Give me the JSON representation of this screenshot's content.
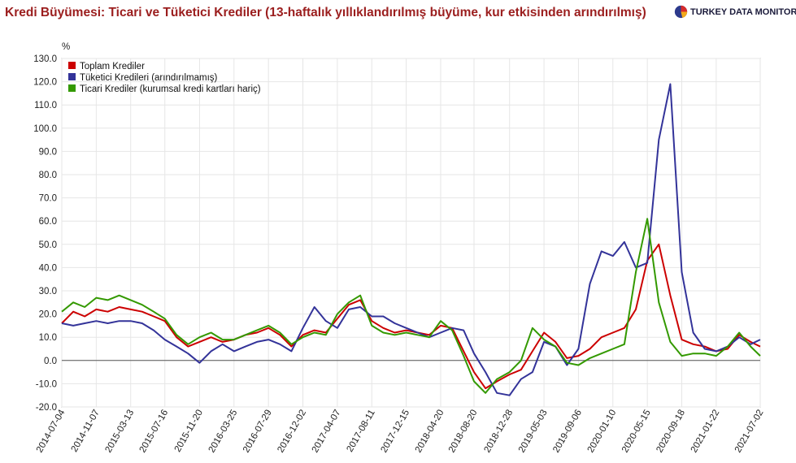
{
  "header": {
    "title": "Kredi Büyümesi: Ticari ve Tüketici Krediler (13-haftalık yıllıklandırılmış büyüme, kur etkisinden arındırılmış)",
    "logo_text": "TURKEY DATA MONITOR",
    "logo_icon": "pie-logo-icon"
  },
  "chart_data": {
    "type": "line",
    "title": "Kredi Büyümesi: Ticari ve Tüketici Krediler (13-haftalık yıllıklandırılmış büyüme, kur etkisinden arındırılmış)",
    "ylabel": "%",
    "ylim": [
      -20,
      130
    ],
    "yticks": [
      "130.0",
      "120.0",
      "110.0",
      "100.0",
      "90.0",
      "80.0",
      "70.0",
      "60.0",
      "50.0",
      "40.0",
      "30.0",
      "20.0",
      "10.0",
      "0.0",
      "-10.0",
      "-20.0"
    ],
    "xlim": [
      "2014-07-04",
      "2021-07-02"
    ],
    "xticks": [
      "2014-07-04",
      "2014-11-07",
      "2015-03-13",
      "2015-07-16",
      "2015-11-20",
      "2016-03-25",
      "2016-07-29",
      "2016-12-02",
      "2017-04-07",
      "2017-08-11",
      "2017-12-15",
      "2018-04-20",
      "2018-08-20",
      "2018-12-28",
      "2019-05-03",
      "2019-09-06",
      "2020-01-10",
      "2020-05-15",
      "2020-09-18",
      "2021-01-22",
      "2021-07-02"
    ],
    "grid": true,
    "zero_line": true,
    "legend_position": "top-left",
    "series": [
      {
        "name": "Toplam Krediler",
        "color": "#cc0000",
        "points": [
          [
            "2014-07-04",
            16
          ],
          [
            "2014-08-15",
            21
          ],
          [
            "2014-09-26",
            19
          ],
          [
            "2014-11-07",
            22
          ],
          [
            "2014-12-19",
            21
          ],
          [
            "2015-01-30",
            23
          ],
          [
            "2015-03-13",
            22
          ],
          [
            "2015-04-24",
            21
          ],
          [
            "2015-06-05",
            19
          ],
          [
            "2015-07-16",
            17
          ],
          [
            "2015-08-28",
            10
          ],
          [
            "2015-10-09",
            6
          ],
          [
            "2015-11-20",
            8
          ],
          [
            "2016-01-01",
            10
          ],
          [
            "2016-02-12",
            8
          ],
          [
            "2016-03-25",
            9
          ],
          [
            "2016-05-06",
            11
          ],
          [
            "2016-06-17",
            12
          ],
          [
            "2016-07-29",
            14
          ],
          [
            "2016-09-09",
            11
          ],
          [
            "2016-10-21",
            6
          ],
          [
            "2016-12-02",
            11
          ],
          [
            "2017-01-13",
            13
          ],
          [
            "2017-02-24",
            12
          ],
          [
            "2017-04-07",
            18
          ],
          [
            "2017-05-19",
            24
          ],
          [
            "2017-06-30",
            26
          ],
          [
            "2017-08-11",
            17
          ],
          [
            "2017-09-22",
            14
          ],
          [
            "2017-11-03",
            12
          ],
          [
            "2017-12-15",
            13
          ],
          [
            "2018-01-26",
            12
          ],
          [
            "2018-03-09",
            11
          ],
          [
            "2018-04-20",
            15
          ],
          [
            "2018-06-01",
            14
          ],
          [
            "2018-07-13",
            4
          ],
          [
            "2018-08-20",
            -5
          ],
          [
            "2018-10-01",
            -12
          ],
          [
            "2018-11-12",
            -9
          ],
          [
            "2018-12-28",
            -6
          ],
          [
            "2019-02-08",
            -4
          ],
          [
            "2019-03-22",
            4
          ],
          [
            "2019-05-03",
            12
          ],
          [
            "2019-06-14",
            8
          ],
          [
            "2019-07-26",
            1
          ],
          [
            "2019-09-06",
            2
          ],
          [
            "2019-10-18",
            5
          ],
          [
            "2019-11-29",
            10
          ],
          [
            "2020-01-10",
            12
          ],
          [
            "2020-02-21",
            14
          ],
          [
            "2020-04-03",
            22
          ],
          [
            "2020-05-15",
            43
          ],
          [
            "2020-06-26",
            50
          ],
          [
            "2020-08-07",
            28
          ],
          [
            "2020-09-18",
            9
          ],
          [
            "2020-10-30",
            7
          ],
          [
            "2020-12-11",
            6
          ],
          [
            "2021-01-22",
            4
          ],
          [
            "2021-03-05",
            5
          ],
          [
            "2021-04-16",
            11
          ],
          [
            "2021-05-28",
            8
          ],
          [
            "2021-07-02",
            6
          ]
        ]
      },
      {
        "name": "Tüketici Kredileri (arındırılmamış)",
        "color": "#333399",
        "points": [
          [
            "2014-07-04",
            16
          ],
          [
            "2014-08-15",
            15
          ],
          [
            "2014-09-26",
            16
          ],
          [
            "2014-11-07",
            17
          ],
          [
            "2014-12-19",
            16
          ],
          [
            "2015-01-30",
            17
          ],
          [
            "2015-03-13",
            17
          ],
          [
            "2015-04-24",
            16
          ],
          [
            "2015-06-05",
            13
          ],
          [
            "2015-07-16",
            9
          ],
          [
            "2015-08-28",
            6
          ],
          [
            "2015-10-09",
            3
          ],
          [
            "2015-11-20",
            -1
          ],
          [
            "2016-01-01",
            4
          ],
          [
            "2016-02-12",
            7
          ],
          [
            "2016-03-25",
            4
          ],
          [
            "2016-05-06",
            6
          ],
          [
            "2016-06-17",
            8
          ],
          [
            "2016-07-29",
            9
          ],
          [
            "2016-09-09",
            7
          ],
          [
            "2016-10-21",
            4
          ],
          [
            "2016-12-02",
            14
          ],
          [
            "2017-01-13",
            23
          ],
          [
            "2017-02-24",
            17
          ],
          [
            "2017-04-07",
            14
          ],
          [
            "2017-05-19",
            22
          ],
          [
            "2017-06-30",
            23
          ],
          [
            "2017-08-11",
            19
          ],
          [
            "2017-09-22",
            19
          ],
          [
            "2017-11-03",
            16
          ],
          [
            "2017-12-15",
            14
          ],
          [
            "2018-01-26",
            12
          ],
          [
            "2018-03-09",
            10
          ],
          [
            "2018-04-20",
            12
          ],
          [
            "2018-06-01",
            14
          ],
          [
            "2018-07-13",
            13
          ],
          [
            "2018-08-20",
            3
          ],
          [
            "2018-10-01",
            -5
          ],
          [
            "2018-11-12",
            -14
          ],
          [
            "2018-12-28",
            -15
          ],
          [
            "2019-02-08",
            -8
          ],
          [
            "2019-03-22",
            -5
          ],
          [
            "2019-05-03",
            8
          ],
          [
            "2019-06-14",
            6
          ],
          [
            "2019-07-26",
            -2
          ],
          [
            "2019-09-06",
            5
          ],
          [
            "2019-10-18",
            33
          ],
          [
            "2019-11-29",
            47
          ],
          [
            "2020-01-10",
            45
          ],
          [
            "2020-02-21",
            51
          ],
          [
            "2020-04-03",
            40
          ],
          [
            "2020-05-15",
            42
          ],
          [
            "2020-06-26",
            95
          ],
          [
            "2020-08-07",
            119
          ],
          [
            "2020-09-18",
            38
          ],
          [
            "2020-10-30",
            12
          ],
          [
            "2020-12-11",
            5
          ],
          [
            "2021-01-22",
            4
          ],
          [
            "2021-03-05",
            6
          ],
          [
            "2021-04-16",
            10
          ],
          [
            "2021-05-28",
            7
          ],
          [
            "2021-07-02",
            9
          ]
        ]
      },
      {
        "name": "Ticari Krediler (kurumsal kredi kartları hariç)",
        "color": "#339900",
        "points": [
          [
            "2014-07-04",
            21
          ],
          [
            "2014-08-15",
            25
          ],
          [
            "2014-09-26",
            23
          ],
          [
            "2014-11-07",
            27
          ],
          [
            "2014-12-19",
            26
          ],
          [
            "2015-01-30",
            28
          ],
          [
            "2015-03-13",
            26
          ],
          [
            "2015-04-24",
            24
          ],
          [
            "2015-06-05",
            21
          ],
          [
            "2015-07-16",
            18
          ],
          [
            "2015-08-28",
            11
          ],
          [
            "2015-10-09",
            7
          ],
          [
            "2015-11-20",
            10
          ],
          [
            "2016-01-01",
            12
          ],
          [
            "2016-02-12",
            9
          ],
          [
            "2016-03-25",
            9
          ],
          [
            "2016-05-06",
            11
          ],
          [
            "2016-06-17",
            13
          ],
          [
            "2016-07-29",
            15
          ],
          [
            "2016-09-09",
            12
          ],
          [
            "2016-10-21",
            7
          ],
          [
            "2016-12-02",
            10
          ],
          [
            "2017-01-13",
            12
          ],
          [
            "2017-02-24",
            11
          ],
          [
            "2017-04-07",
            20
          ],
          [
            "2017-05-19",
            25
          ],
          [
            "2017-06-30",
            28
          ],
          [
            "2017-08-11",
            15
          ],
          [
            "2017-09-22",
            12
          ],
          [
            "2017-11-03",
            11
          ],
          [
            "2017-12-15",
            12
          ],
          [
            "2018-01-26",
            11
          ],
          [
            "2018-03-09",
            10
          ],
          [
            "2018-04-20",
            17
          ],
          [
            "2018-06-01",
            13
          ],
          [
            "2018-07-13",
            2
          ],
          [
            "2018-08-20",
            -9
          ],
          [
            "2018-10-01",
            -14
          ],
          [
            "2018-11-12",
            -8
          ],
          [
            "2018-12-28",
            -5
          ],
          [
            "2019-02-08",
            0
          ],
          [
            "2019-03-22",
            14
          ],
          [
            "2019-05-03",
            9
          ],
          [
            "2019-06-14",
            6
          ],
          [
            "2019-07-26",
            -1
          ],
          [
            "2019-09-06",
            -2
          ],
          [
            "2019-10-18",
            1
          ],
          [
            "2019-11-29",
            3
          ],
          [
            "2020-01-10",
            5
          ],
          [
            "2020-02-21",
            7
          ],
          [
            "2020-04-03",
            38
          ],
          [
            "2020-05-15",
            61
          ],
          [
            "2020-06-26",
            25
          ],
          [
            "2020-08-07",
            8
          ],
          [
            "2020-09-18",
            2
          ],
          [
            "2020-10-30",
            3
          ],
          [
            "2020-12-11",
            3
          ],
          [
            "2021-01-22",
            2
          ],
          [
            "2021-03-05",
            6
          ],
          [
            "2021-04-16",
            12
          ],
          [
            "2021-05-28",
            6
          ],
          [
            "2021-07-02",
            2
          ]
        ]
      }
    ]
  }
}
